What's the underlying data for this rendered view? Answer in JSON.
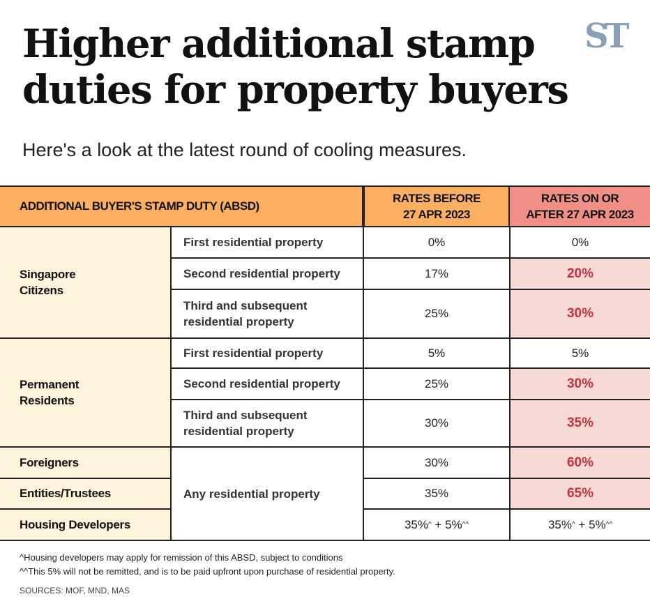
{
  "title": "Higher additional stamp duties for property buyers",
  "subtitle": "Here's a look at the latest round of cooling measures.",
  "logo": "ST",
  "table": {
    "header": {
      "col1": "ADDITIONAL BUYER'S STAMP DUTY (ABSD)",
      "col2_line1": "RATES BEFORE",
      "col2_line2": "27 APR 2023",
      "col3_line1": "RATES ON OR",
      "col3_line2": "AFTER 27 APR 2023"
    },
    "groups": {
      "sc": {
        "line1": "Singapore",
        "line2": "Citizens",
        "rows": [
          {
            "property": "First residential property",
            "before": "0%",
            "after": "0%"
          },
          {
            "property": "Second residential property",
            "before": "17%",
            "after": "20%"
          },
          {
            "property_line1": "Third and subsequent",
            "property_line2": "residential property",
            "before": "25%",
            "after": "30%"
          }
        ]
      },
      "pr": {
        "line1": "Permanent",
        "line2": "Residents",
        "rows": [
          {
            "property": "First residential property",
            "before": "5%",
            "after": "5%"
          },
          {
            "property": "Second residential property",
            "before": "25%",
            "after": "30%"
          },
          {
            "property_line1": "Third and subsequent",
            "property_line2": "residential property",
            "before": "30%",
            "after": "35%"
          }
        ]
      },
      "shared_property": "Any residential property",
      "foreigners": {
        "label": "Foreigners",
        "before": "30%",
        "after": "60%"
      },
      "entities": {
        "label": "Entities/Trustees",
        "before": "35%",
        "after": "65%"
      },
      "developers": {
        "label": "Housing Developers",
        "before_a": "35%",
        "sup_a": "^",
        "plus": " + ",
        "before_b": "5%",
        "sup_b": "^^",
        "after_a": "35%",
        "after_b": "5%"
      }
    }
  },
  "colors": {
    "header": "#fbb061",
    "header_after": "#ef8f86",
    "group_bg": "#fdf4dc",
    "increase_bg": "#f7d9d6",
    "increase_text": "#c8313e"
  },
  "footnotes": [
    "^Housing developers may apply for remission of this ABSD, subject to conditions",
    "^^This 5% will not be remitted, and is to be paid upfront upon purchase of residential property."
  ],
  "sources": "SOURCES: MOF, MND, MAS"
}
